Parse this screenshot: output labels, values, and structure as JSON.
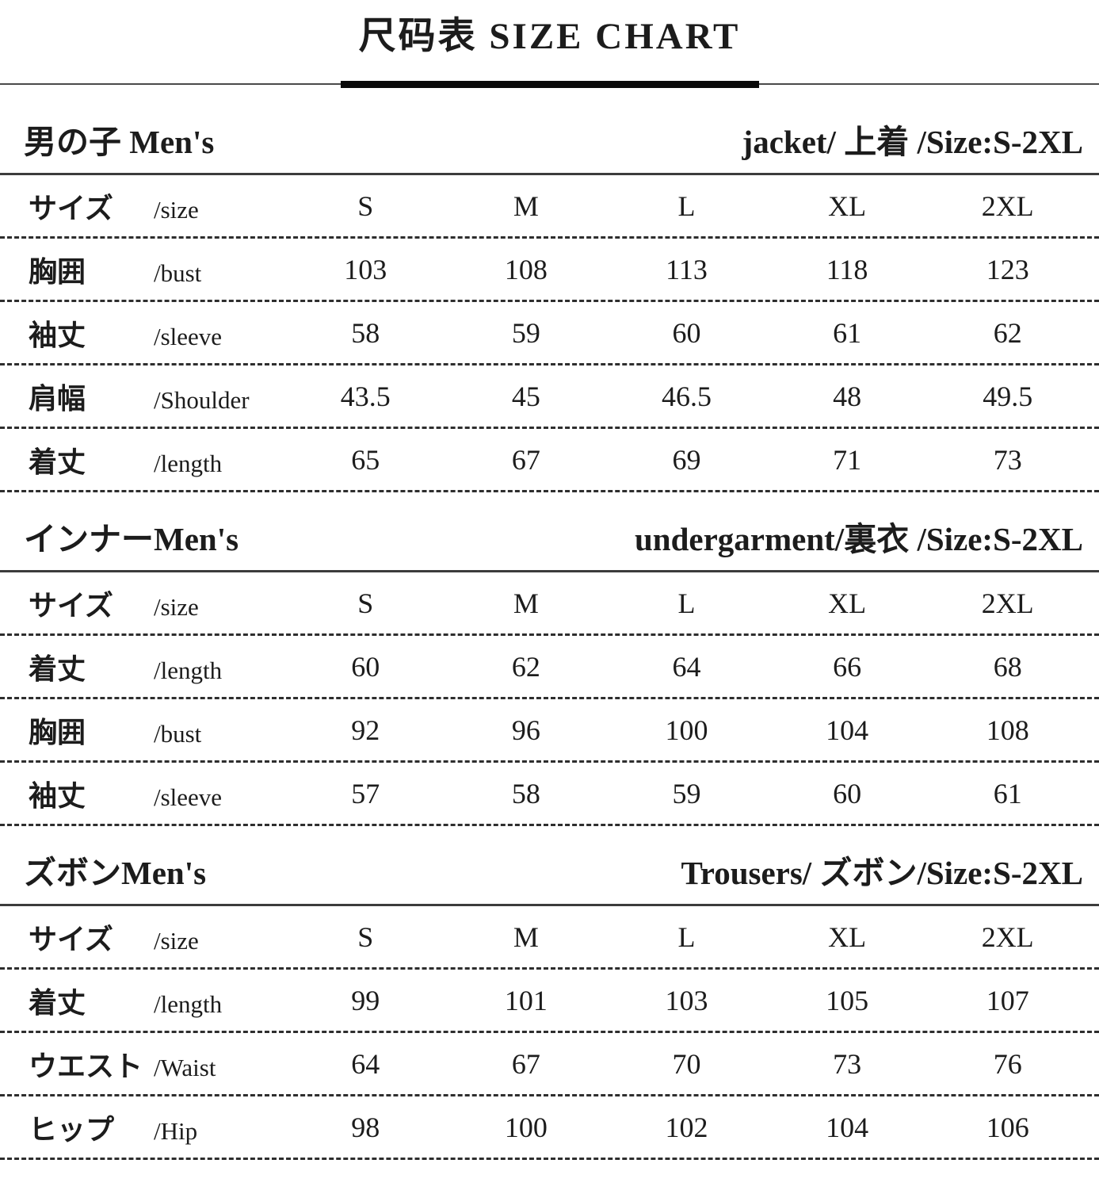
{
  "page": {
    "title": "尺码表 SIZE CHART",
    "text_color": "#1c1c1c",
    "background_color": "#ffffff",
    "divider_color": "#0a0a0a"
  },
  "sections": [
    {
      "id": "jacket",
      "header_left_jp": "男の子",
      "header_left_en": " Men's",
      "header_right": "jacket/ 上着  /Size:S-2XL",
      "rows": [
        {
          "label_jp": "サイズ",
          "label_en": "/size",
          "values": [
            "S",
            "M",
            "L",
            "XL",
            "2XL"
          ]
        },
        {
          "label_jp": "胸囲",
          "label_en": "/bust",
          "values": [
            "103",
            "108",
            "113",
            "118",
            "123"
          ]
        },
        {
          "label_jp": "袖丈",
          "label_en": "/sleeve",
          "values": [
            "58",
            "59",
            "60",
            "61",
            "62"
          ]
        },
        {
          "label_jp": "肩幅",
          "label_en": "/Shoulder",
          "values": [
            "43.5",
            "45",
            "46.5",
            "48",
            "49.5"
          ]
        },
        {
          "label_jp": "着丈",
          "label_en": "/length",
          "values": [
            "65",
            "67",
            "69",
            "71",
            "73"
          ]
        }
      ]
    },
    {
      "id": "undergarment",
      "header_left_jp": "インナー",
      "header_left_en": "Men's",
      "header_right": "undergarment/裏衣  /Size:S-2XL",
      "rows": [
        {
          "label_jp": "サイズ",
          "label_en": "/size",
          "values": [
            "S",
            "M",
            "L",
            "XL",
            "2XL"
          ]
        },
        {
          "label_jp": "着丈",
          "label_en": "/length",
          "values": [
            "60",
            "62",
            "64",
            "66",
            "68"
          ]
        },
        {
          "label_jp": "胸囲",
          "label_en": "/bust",
          "values": [
            "92",
            "96",
            "100",
            "104",
            "108"
          ]
        },
        {
          "label_jp": "袖丈",
          "label_en": "/sleeve",
          "values": [
            "57",
            "58",
            "59",
            "60",
            "61"
          ]
        }
      ]
    },
    {
      "id": "trousers",
      "header_left_jp": "ズボン",
      "header_left_en": "Men's",
      "header_right": "Trousers/ ズボン/Size:S-2XL",
      "rows": [
        {
          "label_jp": "サイズ",
          "label_en": "/size",
          "values": [
            "S",
            "M",
            "L",
            "XL",
            "2XL"
          ]
        },
        {
          "label_jp": "着丈",
          "label_en": "/length",
          "values": [
            "99",
            "101",
            "103",
            "105",
            "107"
          ]
        },
        {
          "label_jp": "ウエスト",
          "label_en": "/Waist",
          "values": [
            "64",
            "67",
            "70",
            "73",
            "76"
          ]
        },
        {
          "label_jp": "ヒップ",
          "label_en": "/Hip",
          "values": [
            "98",
            "100",
            "102",
            "104",
            "106"
          ]
        }
      ]
    }
  ]
}
